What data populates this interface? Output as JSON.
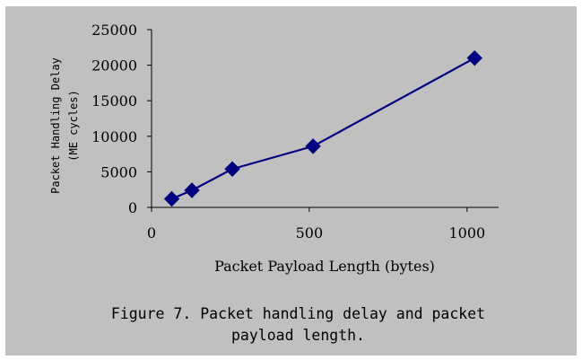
{
  "chart_data": {
    "type": "line",
    "xlabel": "Packet Payload Length (bytes)",
    "ylabel": "Packet Handling Delay",
    "ylabel_unit": "(ME cycles)",
    "xlim": [
      0,
      1100
    ],
    "ylim": [
      0,
      25000
    ],
    "xticks": [
      0,
      500,
      1000
    ],
    "xtick_labels": [
      "0",
      "500",
      "1000"
    ],
    "yticks": [
      0,
      5000,
      10000,
      15000,
      20000,
      25000
    ],
    "ytick_labels": [
      "0",
      "5000",
      "10000",
      "15000",
      "20000",
      "25000"
    ],
    "grid": false,
    "marker": "diamond",
    "line_color": "#000080",
    "series": [
      {
        "x": [
          64,
          128,
          256,
          512,
          1024
        ],
        "y": [
          1200,
          2400,
          5400,
          8600,
          21000
        ]
      }
    ]
  },
  "caption": {
    "line1": "Figure 7. Packet handling delay and packet",
    "line2": "payload length."
  }
}
